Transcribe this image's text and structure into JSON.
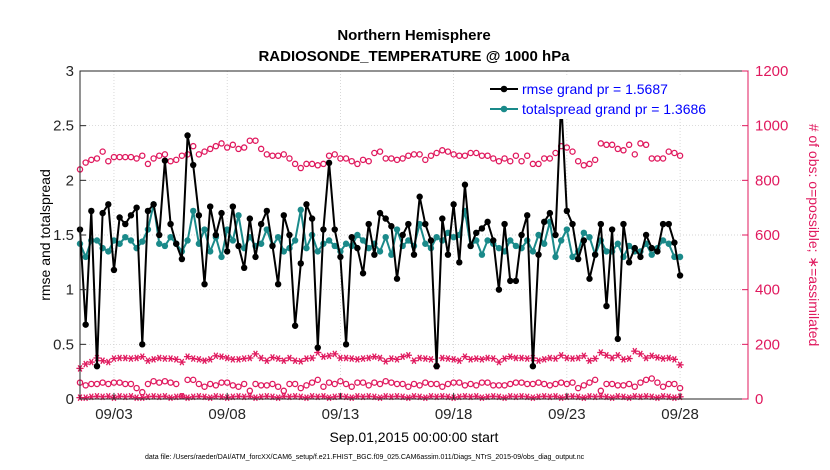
{
  "chart_data": {
    "type": "line",
    "title_line1": "Northern Hemisphere",
    "title_line2": "RADIOSONDE_TEMPERATURE @ 1000 hPa",
    "xlabel": "Sep.01,2015 00:00:00 start",
    "ylabel_left": "rmse and totalspread",
    "ylabel_right": "# of obs: o=possible; ∗=assimilated",
    "footnote": "data file: /Users/raeder/DAI/ATM_forcXX/CAM6_setup/f.e21.FHIST_BGC.f09_025.CAM6assim.011/Diags_NTrS_2015-09/obs_diag_output.nc",
    "ylim_left": [
      0,
      3
    ],
    "ylim_right": [
      0,
      1200
    ],
    "xlim_days": [
      1.5,
      31.0
    ],
    "left_ticks": [
      {
        "value": 0,
        "label": "0"
      },
      {
        "value": 0.5,
        "label": "0.5"
      },
      {
        "value": 1,
        "label": "1"
      },
      {
        "value": 1.5,
        "label": "1.5"
      },
      {
        "value": 2,
        "label": "2"
      },
      {
        "value": 2.5,
        "label": "2.5"
      },
      {
        "value": 3,
        "label": "3"
      }
    ],
    "right_ticks": [
      {
        "value": 0,
        "label": "0"
      },
      {
        "value": 200,
        "label": "200"
      },
      {
        "value": 400,
        "label": "400"
      },
      {
        "value": 600,
        "label": "600"
      },
      {
        "value": 800,
        "label": "800"
      },
      {
        "value": 1000,
        "label": "1000"
      },
      {
        "value": 1200,
        "label": "1200"
      }
    ],
    "x_ticks": [
      {
        "value": 3,
        "label": "09/03"
      },
      {
        "value": 8,
        "label": "09/08"
      },
      {
        "value": 13,
        "label": "09/13"
      },
      {
        "value": 18,
        "label": "09/18"
      },
      {
        "value": 23,
        "label": "09/23"
      },
      {
        "value": 28,
        "label": "09/28"
      }
    ],
    "step_days": 0.25,
    "x_start": 1.5,
    "series": [
      {
        "name": "rmse grand pr = 1.5687",
        "color": "#000000",
        "marker": "filled-circle",
        "axis": "left",
        "values": [
          1.55,
          0.68,
          1.72,
          0.3,
          1.7,
          1.78,
          1.18,
          1.66,
          1.6,
          1.68,
          1.75,
          0.5,
          1.72,
          1.78,
          1.5,
          2.18,
          1.6,
          1.42,
          1.28,
          2.41,
          2.14,
          1.68,
          1.05,
          1.76,
          1.5,
          1.7,
          1.35,
          1.76,
          1.4,
          1.2,
          1.65,
          1.3,
          1.6,
          1.72,
          1.4,
          1.05,
          1.68,
          1.5,
          0.67,
          1.24,
          1.78,
          1.65,
          0.47,
          1.55,
          2.16,
          1.55,
          1.3,
          0.5,
          1.48,
          1.38,
          1.15,
          1.6,
          1.32,
          1.7,
          1.65,
          1.58,
          1.1,
          1.5,
          1.6,
          1.32,
          1.85,
          1.6,
          1.45,
          0.3,
          1.65,
          1.32,
          1.78,
          1.25,
          1.96,
          1.4,
          1.52,
          1.56,
          1.62,
          1.45,
          1.0,
          1.6,
          1.08,
          1.08,
          1.5,
          1.68,
          0.3,
          1.32,
          1.62,
          1.7,
          1.5,
          2.73,
          1.72,
          1.6,
          1.28,
          1.45,
          1.1,
          1.32,
          1.6,
          0.85,
          1.55,
          0.55,
          1.6,
          1.25,
          1.38,
          1.3,
          1.5,
          1.38,
          1.35,
          1.6,
          1.6,
          1.43,
          1.13
        ],
        "missing_index": []
      },
      {
        "name": "totalspread grand pr = 1.3686",
        "color": "#1a8a8a",
        "marker": "filled-circle",
        "axis": "left",
        "values": [
          1.42,
          1.3,
          1.45,
          1.45,
          1.38,
          1.35,
          1.45,
          1.42,
          1.48,
          1.45,
          1.38,
          1.44,
          1.55,
          1.78,
          1.42,
          1.4,
          1.48,
          1.42,
          1.35,
          1.45,
          1.72,
          1.42,
          1.55,
          1.35,
          1.48,
          1.3,
          1.55,
          1.45,
          1.68,
          1.38,
          1.48,
          1.4,
          1.42,
          1.55,
          1.4,
          1.48,
          1.35,
          1.38,
          1.45,
          1.73,
          1.38,
          1.5,
          1.35,
          1.42,
          1.45,
          1.4,
          1.35,
          1.42,
          1.4,
          1.5,
          1.45,
          1.38,
          1.42,
          1.35,
          1.48,
          1.32,
          1.55,
          1.4,
          1.45,
          1.4,
          1.6,
          1.42,
          1.38,
          1.48,
          1.45,
          1.52,
          1.48,
          1.5,
          1.72,
          1.4,
          1.45,
          1.32,
          1.45,
          1.42,
          1.38,
          1.35,
          1.45,
          1.4,
          1.38,
          1.45,
          1.35,
          1.5,
          1.42,
          1.62,
          1.3,
          1.45,
          1.55,
          1.3,
          1.35,
          1.52,
          1.48,
          1.32,
          1.45,
          1.35,
          1.35,
          1.42,
          1.3,
          1.4,
          1.35,
          1.35,
          1.42,
          1.32,
          1.38,
          1.45,
          1.42,
          1.3,
          1.3
        ]
      },
      {
        "name": "possible obs",
        "color": "#e0195e",
        "marker": "open-circle",
        "axis": "right",
        "hi_values": [
          840,
          865,
          875,
          880,
          905,
          870,
          885,
          885,
          885,
          885,
          880,
          890,
          860,
          880,
          890,
          895,
          870,
          875,
          890,
          895,
          925,
          895,
          905,
          915,
          925,
          935,
          920,
          930,
          915,
          920,
          945,
          945,
          915,
          895,
          890,
          890,
          895,
          880,
          860,
          845,
          860,
          860,
          855,
          860,
          890,
          895,
          880,
          880,
          870,
          860,
          875,
          870,
          900,
          905,
          880,
          880,
          875,
          880,
          890,
          895,
          895,
          875,
          890,
          900,
          910,
          905,
          895,
          890,
          890,
          900,
          900,
          890,
          890,
          880,
          870,
          880,
          870,
          890,
          870,
          890,
          860,
          860,
          880,
          880,
          900,
          925,
          920,
          905,
          870,
          855,
          860,
          875,
          935,
          930,
          930,
          915,
          910,
          930,
          895,
          935,
          930,
          880,
          880,
          880,
          905,
          900,
          890
        ],
        "lo_values": [
          60,
          50,
          55,
          55,
          60,
          55,
          60,
          60,
          55,
          55,
          40,
          25,
          55,
          65,
          60,
          65,
          60,
          55,
          10,
          70,
          70,
          55,
          45,
          55,
          50,
          60,
          60,
          50,
          45,
          55,
          30,
          55,
          50,
          50,
          55,
          45,
          30,
          55,
          55,
          40,
          50,
          60,
          70,
          45,
          60,
          55,
          65,
          55,
          45,
          60,
          60,
          50,
          60,
          55,
          65,
          60,
          55,
          55,
          45,
          55,
          50,
          60,
          55,
          55,
          45,
          55,
          60,
          60,
          50,
          55,
          50,
          60,
          60,
          50,
          50,
          50,
          55,
          60,
          60,
          55,
          55,
          60,
          55,
          50,
          55,
          60,
          55,
          60,
          40,
          50,
          60,
          70,
          30,
          55,
          55,
          50,
          50,
          55,
          45,
          60,
          70,
          75,
          60,
          45,
          55,
          55,
          40
        ]
      },
      {
        "name": "assimilated obs",
        "color": "#e0195e",
        "marker": "asterisk",
        "axis": "right",
        "hi_values": [
          112,
          128,
          135,
          150,
          140,
          135,
          148,
          150,
          150,
          148,
          150,
          155,
          140,
          145,
          150,
          148,
          148,
          145,
          135,
          155,
          148,
          145,
          140,
          145,
          158,
          155,
          150,
          145,
          145,
          148,
          150,
          165,
          150,
          140,
          152,
          148,
          140,
          150,
          140,
          138,
          148,
          150,
          170,
          155,
          158,
          165,
          150,
          150,
          148,
          145,
          148,
          150,
          155,
          150,
          138,
          148,
          145,
          155,
          160,
          140,
          150,
          148,
          145,
          120,
          150,
          148,
          145,
          140,
          155,
          145,
          148,
          145,
          150,
          148,
          135,
          148,
          155,
          150,
          150,
          148,
          150,
          140,
          145,
          150,
          148,
          160,
          150,
          148,
          150,
          158,
          140,
          148,
          170,
          160,
          150,
          160,
          145,
          148,
          175,
          165,
          150,
          158,
          152,
          148,
          150,
          145,
          125
        ],
        "lo_values": [
          5,
          5,
          8,
          10,
          8,
          10,
          5,
          10,
          8,
          10,
          5,
          5,
          8,
          10,
          8,
          10,
          5,
          8,
          10,
          5,
          8,
          10,
          8,
          5,
          10,
          8,
          5,
          8,
          10,
          8,
          10,
          5,
          8,
          10,
          8,
          5,
          10,
          8,
          10,
          8,
          5,
          10,
          8,
          10,
          5,
          8,
          10,
          8,
          5,
          10,
          8,
          10,
          8,
          5,
          10,
          8,
          10,
          8,
          5,
          10,
          8,
          5,
          10,
          8,
          10,
          8,
          5,
          8,
          10,
          8,
          10,
          5,
          8,
          10,
          8,
          5,
          10,
          8,
          10,
          8,
          5,
          8,
          10,
          8,
          10,
          5,
          8,
          10,
          8,
          5,
          10,
          8,
          10,
          8,
          5,
          10,
          8,
          5,
          10,
          8,
          10,
          8,
          5,
          10,
          8,
          5,
          8
        ]
      }
    ],
    "legend": {
      "placement": "top-right"
    }
  }
}
